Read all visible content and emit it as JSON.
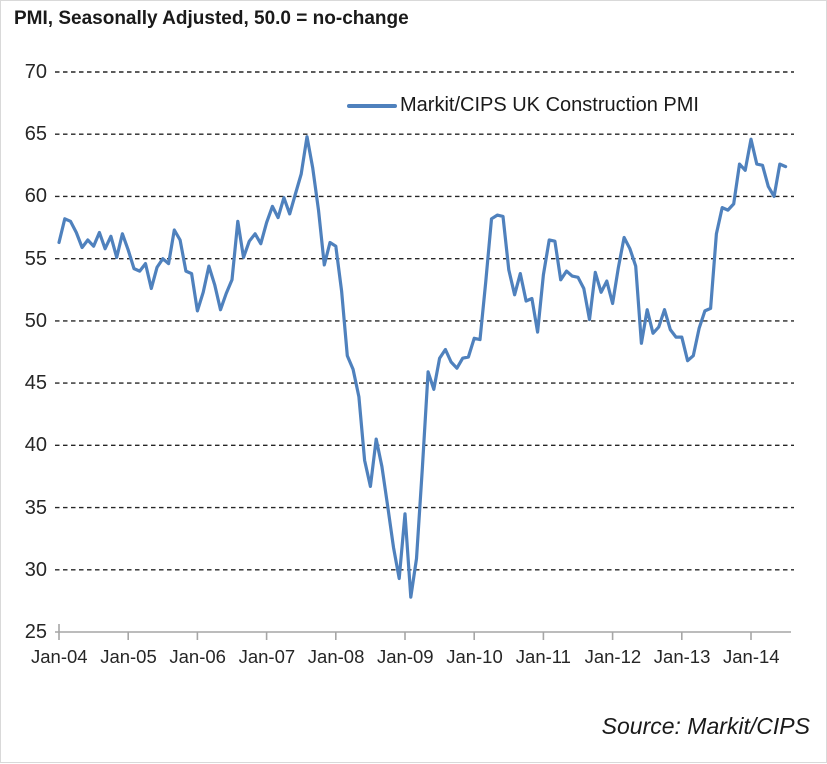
{
  "header": {
    "title": "PMI, Seasonally Adjusted, 50.0 = no-change"
  },
  "legend": {
    "label": "Markit/CIPS UK Construction PMI"
  },
  "footer": {
    "source": "Source: Markit/CIPS"
  },
  "chart_data": {
    "type": "line",
    "title": "PMI, Seasonally Adjusted, 50.0 = no-change",
    "series_name": "Markit/CIPS UK Construction PMI",
    "frequency": "monthly",
    "start_month": "Jan-04",
    "end_month": "Jul-14",
    "x_tick_labels": [
      "Jan-04",
      "Jan-05",
      "Jan-06",
      "Jan-07",
      "Jan-08",
      "Jan-09",
      "Jan-10",
      "Jan-11",
      "Jan-12",
      "Jan-13",
      "Jan-14"
    ],
    "y_ticks": [
      70,
      65,
      60,
      55,
      50,
      45,
      40,
      35,
      30,
      25
    ],
    "ylim": [
      25,
      70
    ],
    "no_change_level": 50.0,
    "grid": "horizontal-dashed",
    "legend_position": "top-center",
    "line_color": "#4F81BD",
    "grid_color": "#262626",
    "axis_color": "#a6a6a6",
    "values": [
      56.3,
      58.2,
      58.0,
      57.1,
      55.9,
      56.5,
      56.0,
      57.1,
      55.8,
      56.8,
      55.1,
      57.0,
      55.7,
      54.2,
      54.0,
      54.6,
      52.6,
      54.3,
      55.0,
      54.6,
      57.3,
      56.5,
      54.0,
      53.8,
      50.8,
      52.3,
      54.4,
      52.9,
      50.9,
      52.2,
      53.3,
      58.0,
      55.1,
      56.4,
      57.0,
      56.2,
      57.9,
      59.2,
      58.3,
      59.9,
      58.6,
      60.2,
      61.8,
      64.8,
      62.3,
      58.9,
      54.5,
      56.3,
      56.0,
      52.4,
      47.2,
      46.1,
      43.9,
      38.8,
      36.7,
      40.5,
      38.3,
      35.1,
      31.8,
      29.3,
      34.5,
      27.8,
      30.9,
      38.1,
      45.9,
      44.5,
      47.0,
      47.7,
      46.7,
      46.2,
      47.0,
      47.1,
      48.6,
      48.5,
      53.1,
      58.2,
      58.5,
      58.4,
      54.1,
      52.1,
      53.8,
      51.6,
      51.8,
      49.1,
      53.7,
      56.5,
      56.4,
      53.3,
      54.0,
      53.6,
      53.5,
      52.6,
      50.1,
      53.9,
      52.3,
      53.2,
      51.4,
      54.3,
      56.7,
      55.8,
      54.4,
      48.2,
      50.9,
      49.0,
      49.5,
      50.9,
      49.3,
      48.7,
      48.7,
      46.8,
      47.2,
      49.4,
      50.8,
      51.0,
      57.0,
      59.1,
      58.9,
      59.4,
      62.6,
      62.1,
      64.6,
      62.6,
      62.5,
      60.8,
      60.0,
      62.6,
      62.4
    ]
  }
}
